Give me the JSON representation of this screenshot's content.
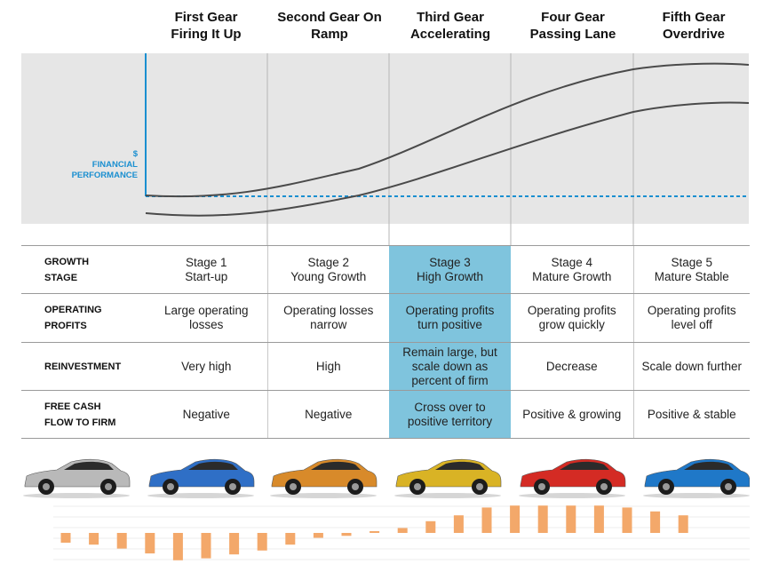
{
  "stages": [
    {
      "gear": "First Gear",
      "sub": "Firing It Up"
    },
    {
      "gear": "Second Gear On",
      "sub": "Ramp"
    },
    {
      "gear": "Third Gear",
      "sub": "Accelerating"
    },
    {
      "gear": "Four Gear",
      "sub": "Passing Lane"
    },
    {
      "gear": "Fifth Gear",
      "sub": "Overdrive"
    }
  ],
  "financial_label": {
    "line1": "$",
    "line2": "FINANCIAL",
    "line3": "PERFORMANCE"
  },
  "colors": {
    "panel": "#e6e6e6",
    "curve": "#4a4a4a",
    "baseline": "#1a8fd0",
    "highlight": "#7fc4dd",
    "bars": "#f3a86a"
  },
  "table": {
    "rows": [
      {
        "label1": "GROWTH",
        "label2": "STAGE",
        "cells": [
          [
            "Stage 1",
            "Start-up"
          ],
          [
            "Stage 2",
            "Young Growth"
          ],
          [
            "Stage 3",
            "High Growth"
          ],
          [
            "Stage 4",
            "Mature Growth"
          ],
          [
            "Stage 5",
            "Mature Stable"
          ]
        ]
      },
      {
        "label1": "OPERATING",
        "label2": "PROFITS",
        "cells": [
          [
            "Large operating",
            "losses"
          ],
          [
            "Operating losses",
            "narrow"
          ],
          [
            "Operating profits",
            "turn positive"
          ],
          [
            "Operating profits",
            "grow quickly"
          ],
          [
            "Operating profits",
            "level off"
          ]
        ]
      },
      {
        "label1": "REINVESTMENT",
        "label2": "",
        "cells": [
          [
            "Very high",
            ""
          ],
          [
            "High",
            ""
          ],
          [
            "Remain large, but",
            "scale down as",
            "percent of firm"
          ],
          [
            "Decrease",
            ""
          ],
          [
            "Scale down further",
            ""
          ]
        ]
      },
      {
        "label1": "FREE CASH",
        "label2": "FLOW TO FIRM",
        "cells": [
          [
            "Negative",
            ""
          ],
          [
            "Negative",
            ""
          ],
          [
            "Cross over to",
            "positive territory"
          ],
          [
            "Positive & growing",
            ""
          ],
          [
            "Positive & stable",
            ""
          ]
        ]
      }
    ]
  },
  "cars": [
    {
      "icon": "silver-sedan-icon",
      "color": "#b9b9b9"
    },
    {
      "icon": "blue-coupe-icon",
      "color": "#2f6fc6"
    },
    {
      "icon": "orange-coupe-icon",
      "color": "#d88a2a"
    },
    {
      "icon": "yellow-coupe-icon",
      "color": "#d9b325"
    },
    {
      "icon": "red-coupe-icon",
      "color": "#d42b24"
    },
    {
      "icon": "blue-coupe-icon",
      "color": "#1f78c8"
    }
  ],
  "chart_data": {
    "type": "bar",
    "values": [
      -1,
      -1.2,
      -1.6,
      -2.1,
      -2.8,
      -2.6,
      -2.2,
      -1.8,
      -1.2,
      -0.5,
      -0.3,
      0,
      0.5,
      1.2,
      1.8,
      2.6,
      2.8,
      2.8,
      2.8,
      2.8,
      2.6,
      2.2,
      1.8
    ]
  }
}
